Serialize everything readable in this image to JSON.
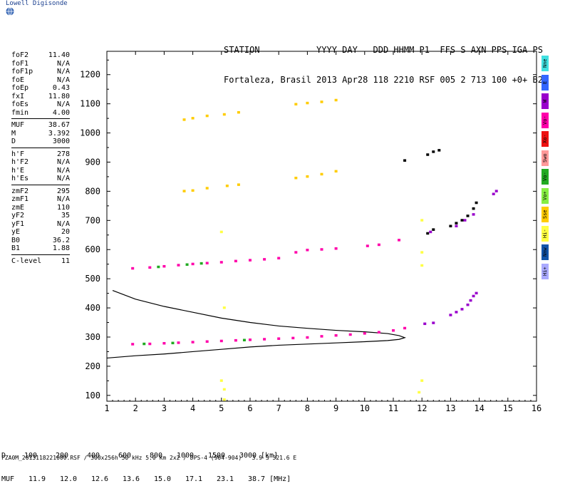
{
  "brand": "Lowell Digisonde",
  "header": {
    "line1": "STATION           YYYY DAY   DDD HHMM P1  FFS S AXN PPS IGA PS",
    "line2": "Fortaleza, Brasil 2013 Apr28 118 2210 RSF 005 2 713 100 +0+ B2"
  },
  "params": [
    {
      "name": "foF2",
      "value": "11.40"
    },
    {
      "name": "foF1",
      "value": "N/A"
    },
    {
      "name": "foF1p",
      "value": "N/A"
    },
    {
      "name": "foE",
      "value": "N/A"
    },
    {
      "name": "foEp",
      "value": "0.43"
    },
    {
      "name": "fxI",
      "value": "11.80"
    },
    {
      "name": "foEs",
      "value": "N/A"
    },
    {
      "name": "fmin",
      "value": "4.00"
    },
    {
      "sep": true
    },
    {
      "name": "MUF",
      "value": "38.67"
    },
    {
      "name": "M",
      "value": "3.392"
    },
    {
      "name": "D",
      "value": "3000"
    },
    {
      "sep": true
    },
    {
      "name": "h'F",
      "value": "278"
    },
    {
      "name": "h'F2",
      "value": "N/A"
    },
    {
      "name": "h'E",
      "value": "N/A"
    },
    {
      "name": "h'Es",
      "value": "N/A"
    },
    {
      "sep": true
    },
    {
      "name": "zmF2",
      "value": "295"
    },
    {
      "name": "zmF1",
      "value": "N/A"
    },
    {
      "name": "zmE",
      "value": "110"
    },
    {
      "name": "yF2",
      "value": "35"
    },
    {
      "name": "yF1",
      "value": "N/A"
    },
    {
      "name": "yE",
      "value": "20"
    },
    {
      "name": "B0",
      "value": "36.2"
    },
    {
      "name": "B1",
      "value": "1.88"
    },
    {
      "sep": true
    },
    {
      "name": "C-level",
      "value": "11"
    }
  ],
  "legend": [
    {
      "label": "Nne",
      "color": "#40e0e0"
    },
    {
      "label": "E",
      "color": "#3366ff"
    },
    {
      "label": "W",
      "color": "#9900cc"
    },
    {
      "label": "Vo-",
      "color": "#ff00aa"
    },
    {
      "label": "Xo-",
      "color": "#ee1111"
    },
    {
      "label": "Swo",
      "color": "#ff9999"
    },
    {
      "label": "Vo-",
      "color": "#22aa22"
    },
    {
      "label": "Vo+",
      "color": "#88ee44"
    },
    {
      "label": "Sse",
      "color": "#ffcc00"
    },
    {
      "label": "Hi-",
      "color": "#ffff44"
    },
    {
      "label": "Nnw",
      "color": "#1155aa"
    },
    {
      "label": "Hi+",
      "color": "#aaaaff"
    }
  ],
  "muf_table": {
    "d_label": "D",
    "muf_label": "MUF",
    "d_values": [
      "100",
      "200",
      "400",
      "600",
      "800",
      "1000",
      "1500",
      "3000"
    ],
    "muf_values": [
      "11.9",
      "12.0",
      "12.6",
      "13.6",
      "15.0",
      "17.1",
      "23.1",
      "38.7"
    ],
    "d_unit": "[km]",
    "muf_unit": "[MHz]"
  },
  "footer": "FZA0M_2013118221000.RSF / 300x256h 50 kHz 5.0 km 2x2 / DPS-4 (904-904)   3.9 S 321.6 E",
  "chart_data": {
    "type": "scatter",
    "xlim": [
      1,
      16
    ],
    "ylim": [
      80,
      1280
    ],
    "x_ticks": [
      1,
      2,
      3,
      4,
      5,
      6,
      7,
      8,
      9,
      10,
      11,
      12,
      13,
      14,
      15,
      16
    ],
    "y_ticks": [
      100,
      200,
      300,
      400,
      500,
      600,
      700,
      800,
      900,
      1000,
      1100,
      1200
    ],
    "xlabel": "",
    "ylabel": "",
    "traces": [
      {
        "color": "#ff00aa",
        "points": [
          [
            1.9,
            275
          ],
          [
            2.5,
            276
          ],
          [
            3.0,
            278
          ],
          [
            3.5,
            280
          ],
          [
            4.0,
            282
          ],
          [
            4.5,
            284
          ],
          [
            5.0,
            286
          ],
          [
            5.5,
            288
          ],
          [
            6.0,
            290
          ],
          [
            6.5,
            292
          ],
          [
            7.0,
            294
          ],
          [
            7.5,
            296
          ],
          [
            8.0,
            298
          ],
          [
            8.5,
            302
          ],
          [
            9.0,
            305
          ],
          [
            9.5,
            308
          ],
          [
            10.0,
            312
          ],
          [
            10.5,
            316
          ],
          [
            11.0,
            322
          ],
          [
            11.4,
            330
          ]
        ]
      },
      {
        "color": "#ff00aa",
        "points": [
          [
            1.9,
            535
          ],
          [
            2.5,
            538
          ],
          [
            3.0,
            542
          ],
          [
            3.5,
            546
          ],
          [
            4.0,
            550
          ],
          [
            4.5,
            553
          ],
          [
            5.0,
            556
          ],
          [
            5.5,
            560
          ],
          [
            6.0,
            563
          ],
          [
            6.5,
            566
          ],
          [
            7.0,
            570
          ],
          [
            7.6,
            590
          ],
          [
            8.0,
            598
          ],
          [
            8.5,
            600
          ],
          [
            9.0,
            603
          ],
          [
            10.1,
            612
          ],
          [
            10.5,
            616
          ],
          [
            11.2,
            632
          ]
        ]
      },
      {
        "color": "#ffcc00",
        "points": [
          [
            3.7,
            800
          ],
          [
            4.0,
            802
          ],
          [
            4.5,
            810
          ],
          [
            5.2,
            818
          ],
          [
            5.6,
            822
          ],
          [
            7.6,
            845
          ],
          [
            8.0,
            850
          ],
          [
            8.5,
            858
          ],
          [
            9.0,
            868
          ]
        ]
      },
      {
        "color": "#ffcc00",
        "points": [
          [
            3.7,
            1045
          ],
          [
            4.0,
            1050
          ],
          [
            4.5,
            1058
          ],
          [
            5.1,
            1063
          ],
          [
            5.6,
            1070
          ],
          [
            7.6,
            1098
          ],
          [
            8.0,
            1102
          ],
          [
            8.5,
            1106
          ],
          [
            9.0,
            1112
          ]
        ]
      },
      {
        "color": "#000000",
        "points": [
          [
            12.2,
            925
          ],
          [
            12.4,
            935
          ],
          [
            12.6,
            940
          ],
          [
            11.4,
            905
          ],
          [
            12.2,
            655
          ],
          [
            12.4,
            668
          ],
          [
            13.0,
            680
          ],
          [
            13.2,
            690
          ],
          [
            13.4,
            700
          ],
          [
            13.6,
            715
          ],
          [
            13.8,
            740
          ],
          [
            13.9,
            760
          ]
        ]
      },
      {
        "color": "#9900cc",
        "points": [
          [
            12.1,
            345
          ],
          [
            12.4,
            348
          ],
          [
            13.0,
            375
          ],
          [
            13.2,
            385
          ],
          [
            13.4,
            395
          ],
          [
            13.6,
            410
          ],
          [
            13.7,
            425
          ],
          [
            13.8,
            440
          ],
          [
            13.9,
            450
          ],
          [
            14.5,
            790
          ],
          [
            14.6,
            800
          ],
          [
            12.3,
            660
          ],
          [
            13.2,
            680
          ],
          [
            13.5,
            700
          ],
          [
            13.8,
            720
          ]
        ]
      },
      {
        "color": "#22aa22",
        "points": [
          [
            2.3,
            276
          ],
          [
            3.3,
            279
          ],
          [
            5.8,
            289
          ],
          [
            2.8,
            540
          ],
          [
            3.8,
            548
          ],
          [
            4.3,
            552
          ]
        ]
      },
      {
        "color": "#ffff44",
        "points": [
          [
            5.0,
            660
          ],
          [
            5.1,
            400
          ],
          [
            5.0,
            150
          ],
          [
            5.1,
            120
          ],
          [
            12.0,
            700
          ],
          [
            12.0,
            590
          ],
          [
            12.0,
            545
          ],
          [
            12.0,
            150
          ],
          [
            11.9,
            110
          ],
          [
            5.1,
            85
          ]
        ]
      }
    ],
    "model_profile": {
      "color": "#000000",
      "points": [
        [
          1.2,
          460
        ],
        [
          2,
          430
        ],
        [
          3,
          405
        ],
        [
          4,
          385
        ],
        [
          5,
          365
        ],
        [
          6,
          350
        ],
        [
          7,
          338
        ],
        [
          8,
          330
        ],
        [
          9,
          323
        ],
        [
          10,
          318
        ],
        [
          10.8,
          312
        ],
        [
          11.2,
          305
        ],
        [
          11.4,
          298
        ],
        [
          11.2,
          292
        ],
        [
          10.8,
          288
        ],
        [
          10,
          284
        ],
        [
          9,
          280
        ],
        [
          8,
          276
        ],
        [
          7,
          272
        ],
        [
          6,
          266
        ],
        [
          5,
          258
        ],
        [
          4,
          250
        ],
        [
          3,
          242
        ],
        [
          2,
          236
        ],
        [
          1.0,
          228
        ]
      ]
    }
  }
}
